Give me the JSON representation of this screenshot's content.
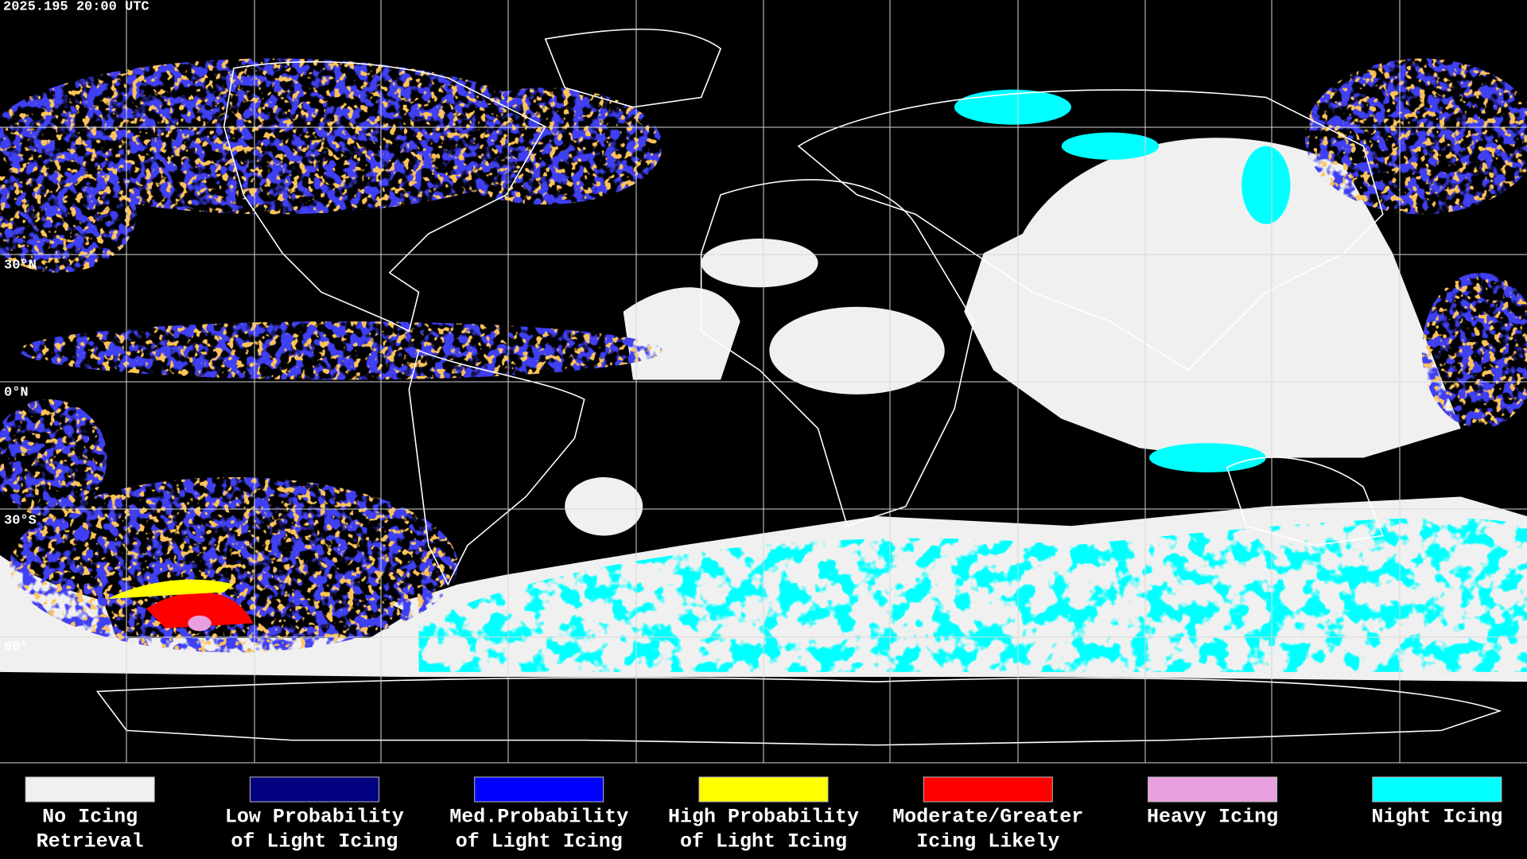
{
  "header": {
    "timestamp": "2025.195 20:00 UTC"
  },
  "latitude_labels": [
    "30°N",
    "0°N",
    "30°S",
    "60°"
  ],
  "legend": [
    {
      "color": "#f0f0f0",
      "label": [
        "No Icing",
        "Retrieval"
      ]
    },
    {
      "color": "#000080",
      "label": [
        "Low Probability",
        "of Light Icing"
      ]
    },
    {
      "color": "#0000ff",
      "label": [
        "Med.Probability",
        "of Light Icing"
      ]
    },
    {
      "color": "#ffff00",
      "label": [
        "High Probability",
        "of Light Icing"
      ]
    },
    {
      "color": "#ff0000",
      "label": [
        "Moderate/Greater",
        "Icing Likely"
      ]
    },
    {
      "color": "#e8a0e0",
      "label": [
        "Heavy Icing"
      ]
    },
    {
      "color": "#00ffff",
      "label": [
        "Night Icing"
      ]
    }
  ]
}
